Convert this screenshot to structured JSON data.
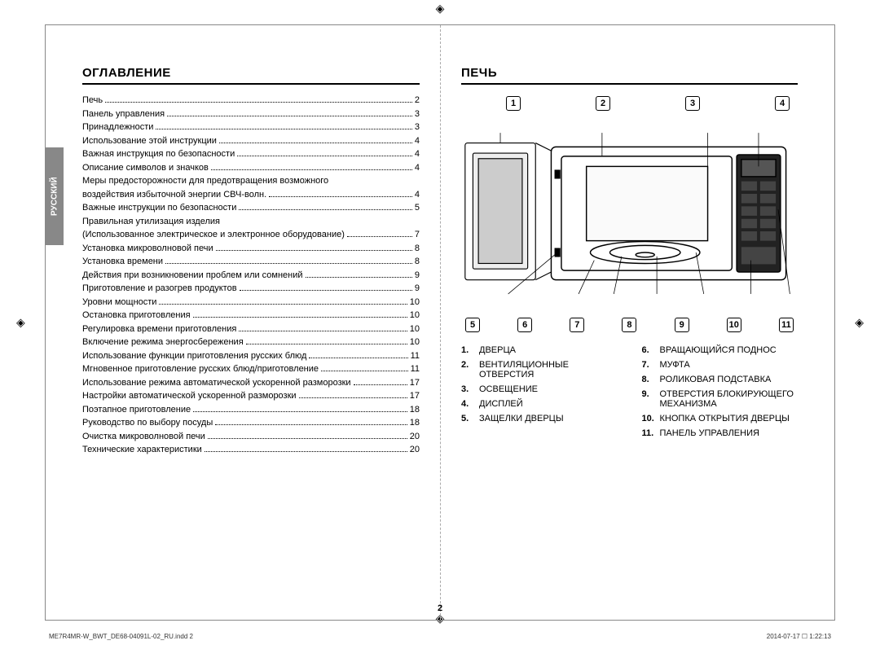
{
  "lang_tab": "РУССКИЙ",
  "left": {
    "title": "ОГЛАВЛЕНИЕ",
    "toc": [
      {
        "label": "Печь",
        "page": "2"
      },
      {
        "label": "Панель управления",
        "page": "3"
      },
      {
        "label": "Принадлежности",
        "page": "3"
      },
      {
        "label": "Использование этой инструкции",
        "page": "4"
      },
      {
        "label": "Важная инструкция по безопасности",
        "page": "4"
      },
      {
        "label": "Описание символов и значков",
        "page": "4"
      },
      {
        "label": "Меры предосторожности для предотвращения возможного",
        "label2": "воздействия избыточной энергии СВЧ-волн.",
        "page": "4",
        "wrap": true
      },
      {
        "label": "Важные инструкции по безопасности",
        "page": "5"
      },
      {
        "label": "Правильная утилизация изделия",
        "label2": "(Использованное электрическое и электронное оборудование)",
        "page": "7",
        "wrap": true
      },
      {
        "label": "Установка микроволновой печи",
        "page": "8"
      },
      {
        "label": "Установка времени",
        "page": "8"
      },
      {
        "label": "Действия при возникновении проблем или сомнений",
        "page": "9"
      },
      {
        "label": "Приготовление и разогрев продуктов",
        "page": "9"
      },
      {
        "label": "Уровни мощности",
        "page": "10"
      },
      {
        "label": "Остановка приготовления",
        "page": "10"
      },
      {
        "label": "Регулировка времени приготовления",
        "page": "10"
      },
      {
        "label": "Включение режима энергосбережения",
        "page": "10"
      },
      {
        "label": "Использование функции приготовления русских блюд",
        "page": "11"
      },
      {
        "label": "Мгновенное приготовление русских блюд/приготовление",
        "page": "11"
      },
      {
        "label": "Использование режима автоматической ускоренной разморозки",
        "page": "17"
      },
      {
        "label": "Настройки автоматической ускоренной разморозки",
        "page": "17"
      },
      {
        "label": "Поэтапное приготовление",
        "page": "18"
      },
      {
        "label": "Руководство по выбору посуды",
        "page": "18"
      },
      {
        "label": "Очистка микроволновой печи",
        "page": "20"
      },
      {
        "label": "Технические характеристики",
        "page": "20"
      }
    ]
  },
  "right": {
    "title": "ПЕЧЬ",
    "callouts_top": [
      "1",
      "2",
      "3",
      "4"
    ],
    "callouts_bottom": [
      "5",
      "6",
      "7",
      "8",
      "9",
      "10",
      "11"
    ],
    "parts_left": [
      {
        "n": "1.",
        "t": "ДВЕРЦА"
      },
      {
        "n": "2.",
        "t": "ВЕНТИЛЯЦИОННЫЕ ОТВЕРСТИЯ"
      },
      {
        "n": "3.",
        "t": "ОСВЕЩЕНИЕ"
      },
      {
        "n": "4.",
        "t": "ДИСПЛЕЙ"
      },
      {
        "n": "5.",
        "t": "ЗАЩЕЛКИ ДВЕРЦЫ"
      }
    ],
    "parts_right": [
      {
        "n": "6.",
        "t": "ВРАЩАЮЩИЙСЯ ПОДНОС"
      },
      {
        "n": "7.",
        "t": "МУФТА"
      },
      {
        "n": "8.",
        "t": "РОЛИКОВАЯ ПОДСТАВКА"
      },
      {
        "n": "9.",
        "t": "ОТВЕРСТИЯ БЛОКИРУЮЩЕГО МЕХАНИЗМА"
      },
      {
        "n": "10.",
        "t": "КНОПКА ОТКРЫТИЯ ДВЕРЦЫ"
      },
      {
        "n": "11.",
        "t": "ПАНЕЛЬ УПРАВЛЕНИЯ"
      }
    ]
  },
  "page_number": "2",
  "footer_left": "ME7R4MR-W_BWT_DE68-04091L-02_RU.indd   2",
  "footer_right": "2014-07-17   ☐ 1:22:13",
  "diagram": {
    "outer_stroke": "#000"
  }
}
